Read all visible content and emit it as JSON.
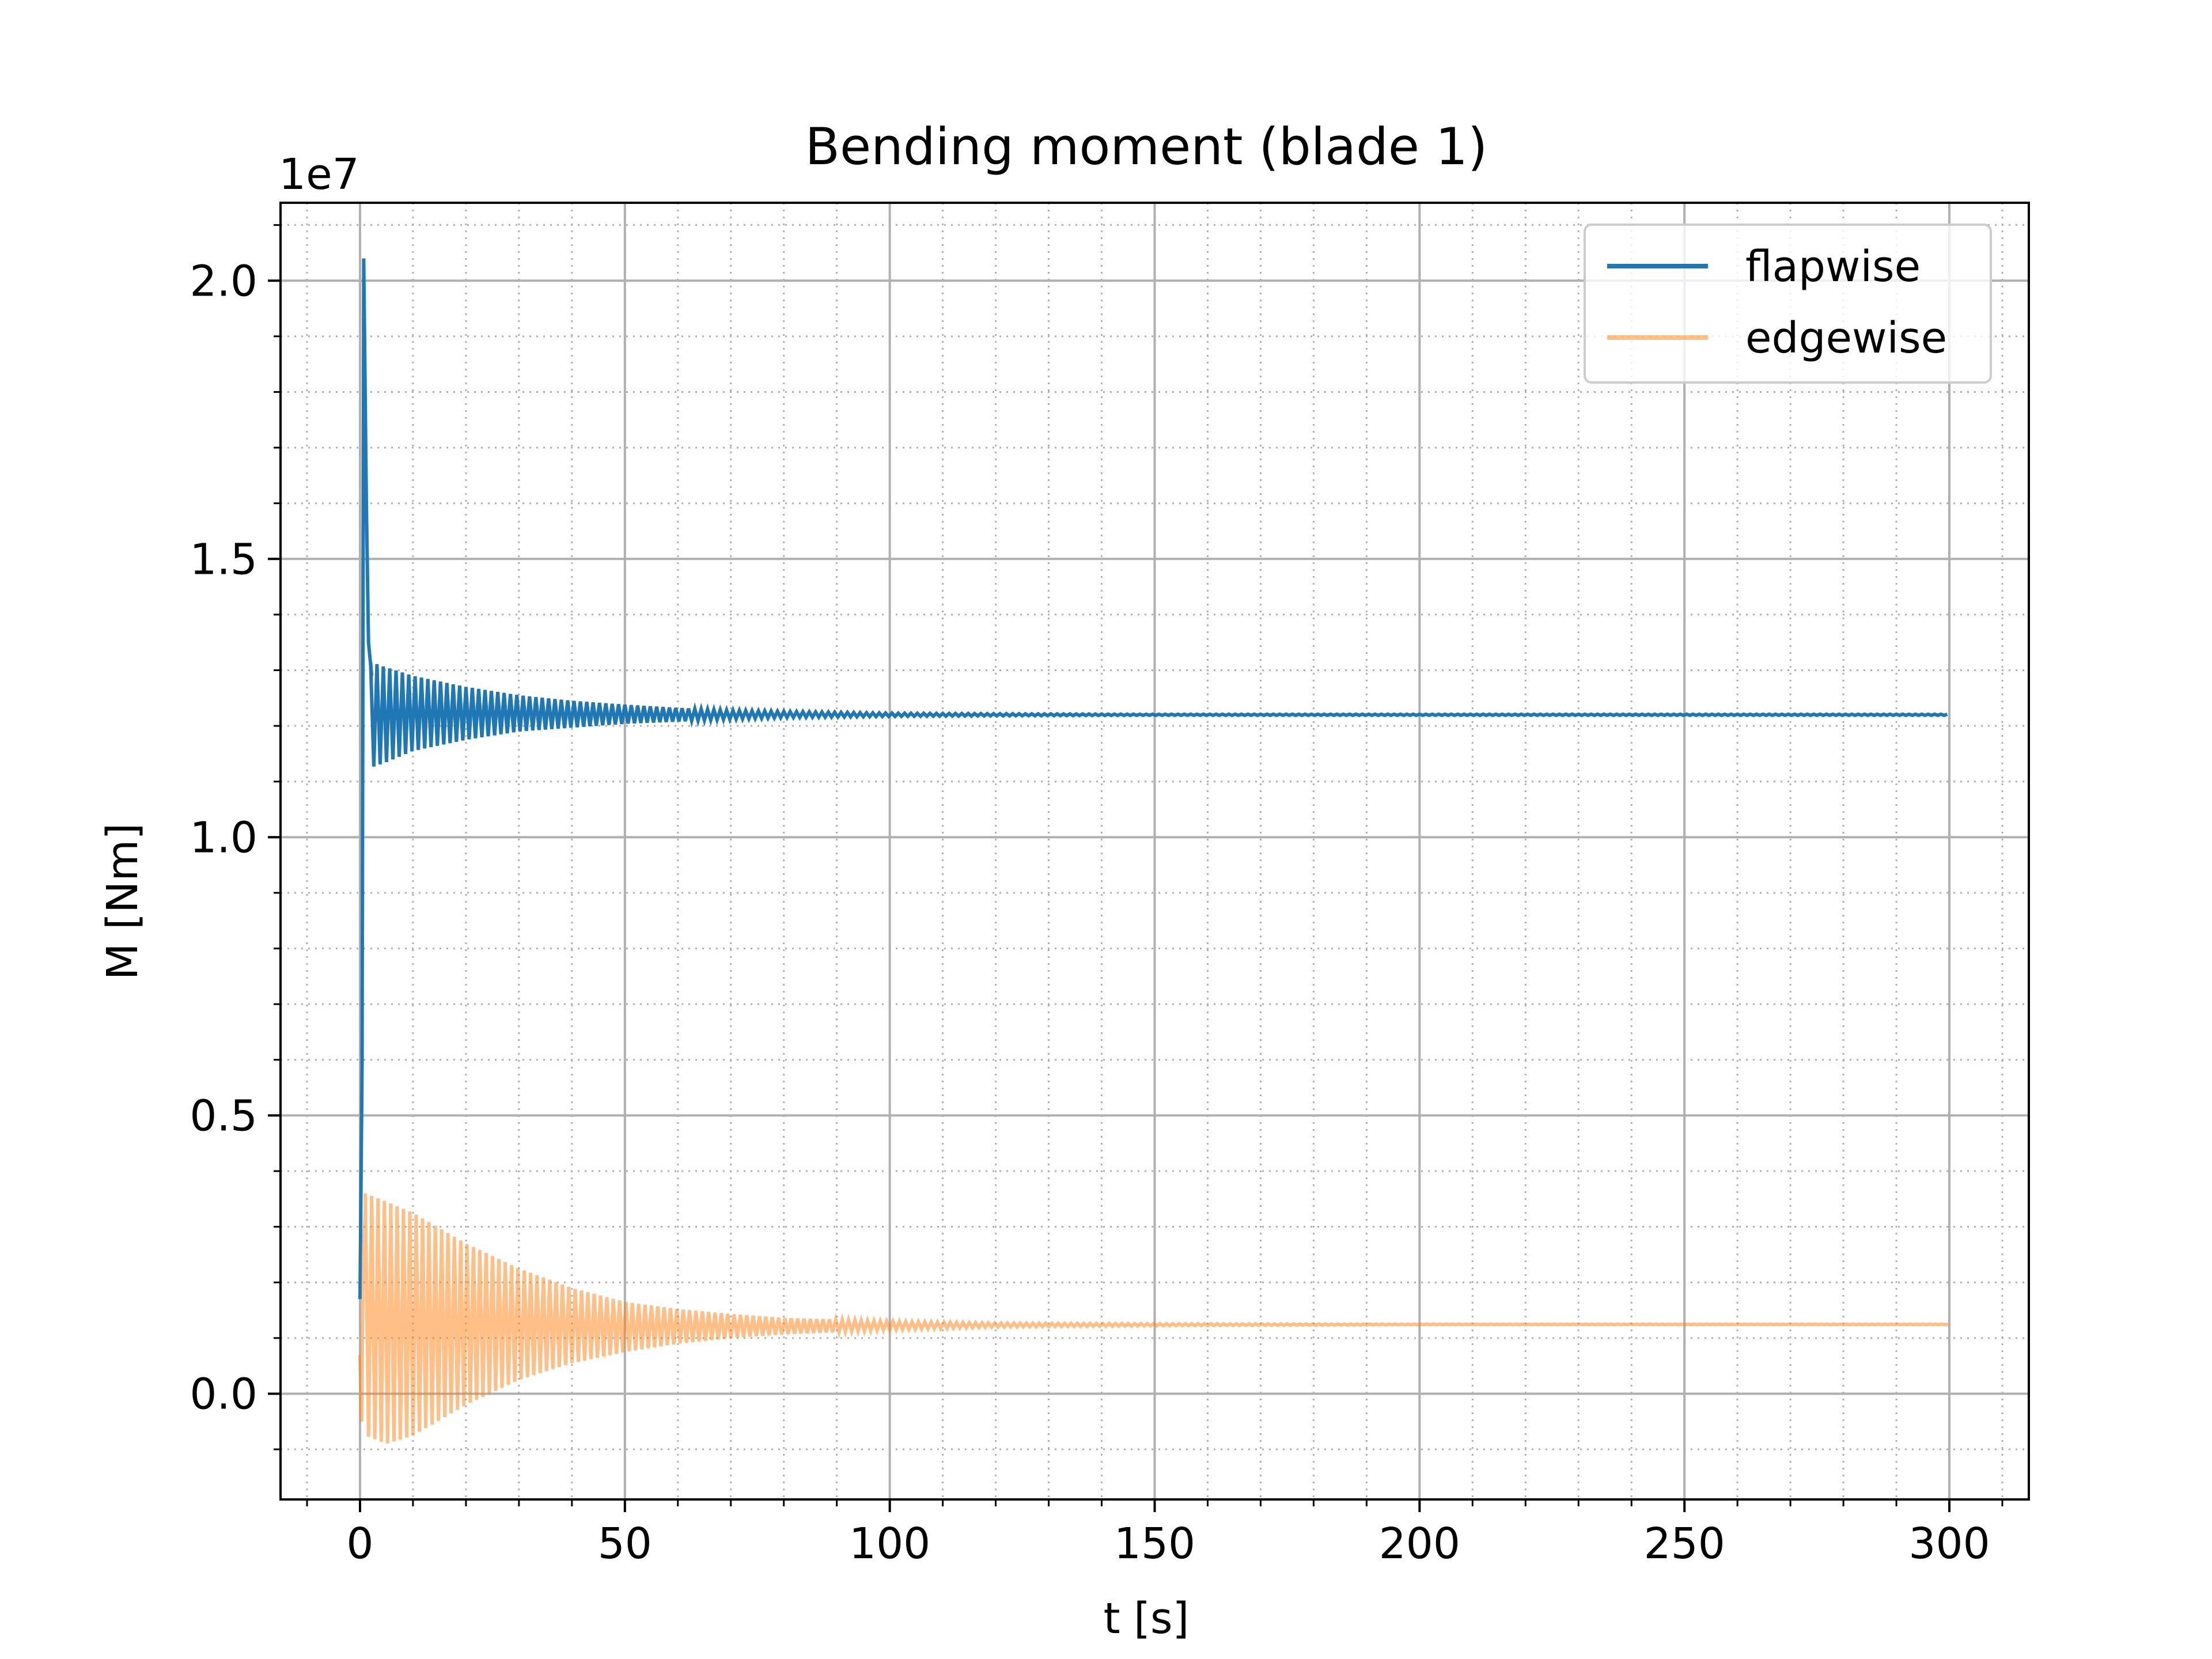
{
  "chart_data": {
    "type": "line",
    "title": "Bending moment (blade 1)",
    "xlabel": "t [s]",
    "ylabel": "M [Nm]",
    "y_offset_label": "1e7",
    "xlim": [
      -15,
      315
    ],
    "ylim": [
      -0.19,
      2.14
    ],
    "y_units_note": "values in units of 1e7 Nm",
    "x_ticks": [
      0,
      50,
      100,
      150,
      200,
      250,
      300
    ],
    "x_tick_labels": [
      "0",
      "50",
      "100",
      "150",
      "200",
      "250",
      "300"
    ],
    "y_ticks": [
      0.0,
      0.5,
      1.0,
      1.5,
      2.0
    ],
    "y_tick_labels": [
      "0.0",
      "0.5",
      "1.0",
      "1.5",
      "2.0"
    ],
    "x_minor_step": 10,
    "y_minor_step": 0.1,
    "grid": {
      "major": "on",
      "minor": "dotted"
    },
    "legend": {
      "position": "top-right"
    },
    "series": [
      {
        "name": "flapwise",
        "color": "#1f77b4",
        "opacity": 1.0,
        "initial": [
          [
            0.0,
            0.17
          ],
          [
            0.4,
            0.6
          ],
          [
            0.7,
            2.04
          ],
          [
            1.2,
            1.6
          ],
          [
            1.6,
            1.35
          ],
          [
            2.2,
            1.29
          ]
        ],
        "envelope": {
          "x": [
            2,
            5,
            10,
            20,
            30,
            40,
            50,
            60,
            70,
            80,
            100,
            120,
            150,
            200,
            250,
            300
          ],
          "upper": [
            1.315,
            1.305,
            1.29,
            1.27,
            1.255,
            1.245,
            1.238,
            1.232,
            1.228,
            1.226,
            1.223,
            1.222,
            1.221,
            1.221,
            1.221,
            1.221
          ],
          "lower": [
            1.125,
            1.135,
            1.155,
            1.175,
            1.19,
            1.197,
            1.204,
            1.208,
            1.212,
            1.215,
            1.217,
            1.218,
            1.219,
            1.219,
            1.219,
            1.219
          ]
        }
      },
      {
        "name": "edgewise",
        "color": "#ff7f0e",
        "opacity": 0.5,
        "initial": [
          [
            0.0,
            0.07
          ],
          [
            0.3,
            -0.05
          ],
          [
            0.6,
            0.25
          ],
          [
            1.0,
            0.33
          ]
        ],
        "envelope": {
          "x": [
            1,
            5,
            10,
            20,
            30,
            40,
            50,
            60,
            70,
            80,
            100,
            120,
            150,
            200,
            250,
            300
          ],
          "upper": [
            0.36,
            0.345,
            0.325,
            0.27,
            0.225,
            0.19,
            0.165,
            0.152,
            0.143,
            0.136,
            0.13,
            0.127,
            0.126,
            0.125,
            0.125,
            0.125
          ],
          "lower": [
            -0.075,
            -0.09,
            -0.075,
            -0.02,
            0.025,
            0.055,
            0.075,
            0.09,
            0.1,
            0.107,
            0.115,
            0.12,
            0.122,
            0.124,
            0.124,
            0.124
          ]
        }
      }
    ]
  }
}
